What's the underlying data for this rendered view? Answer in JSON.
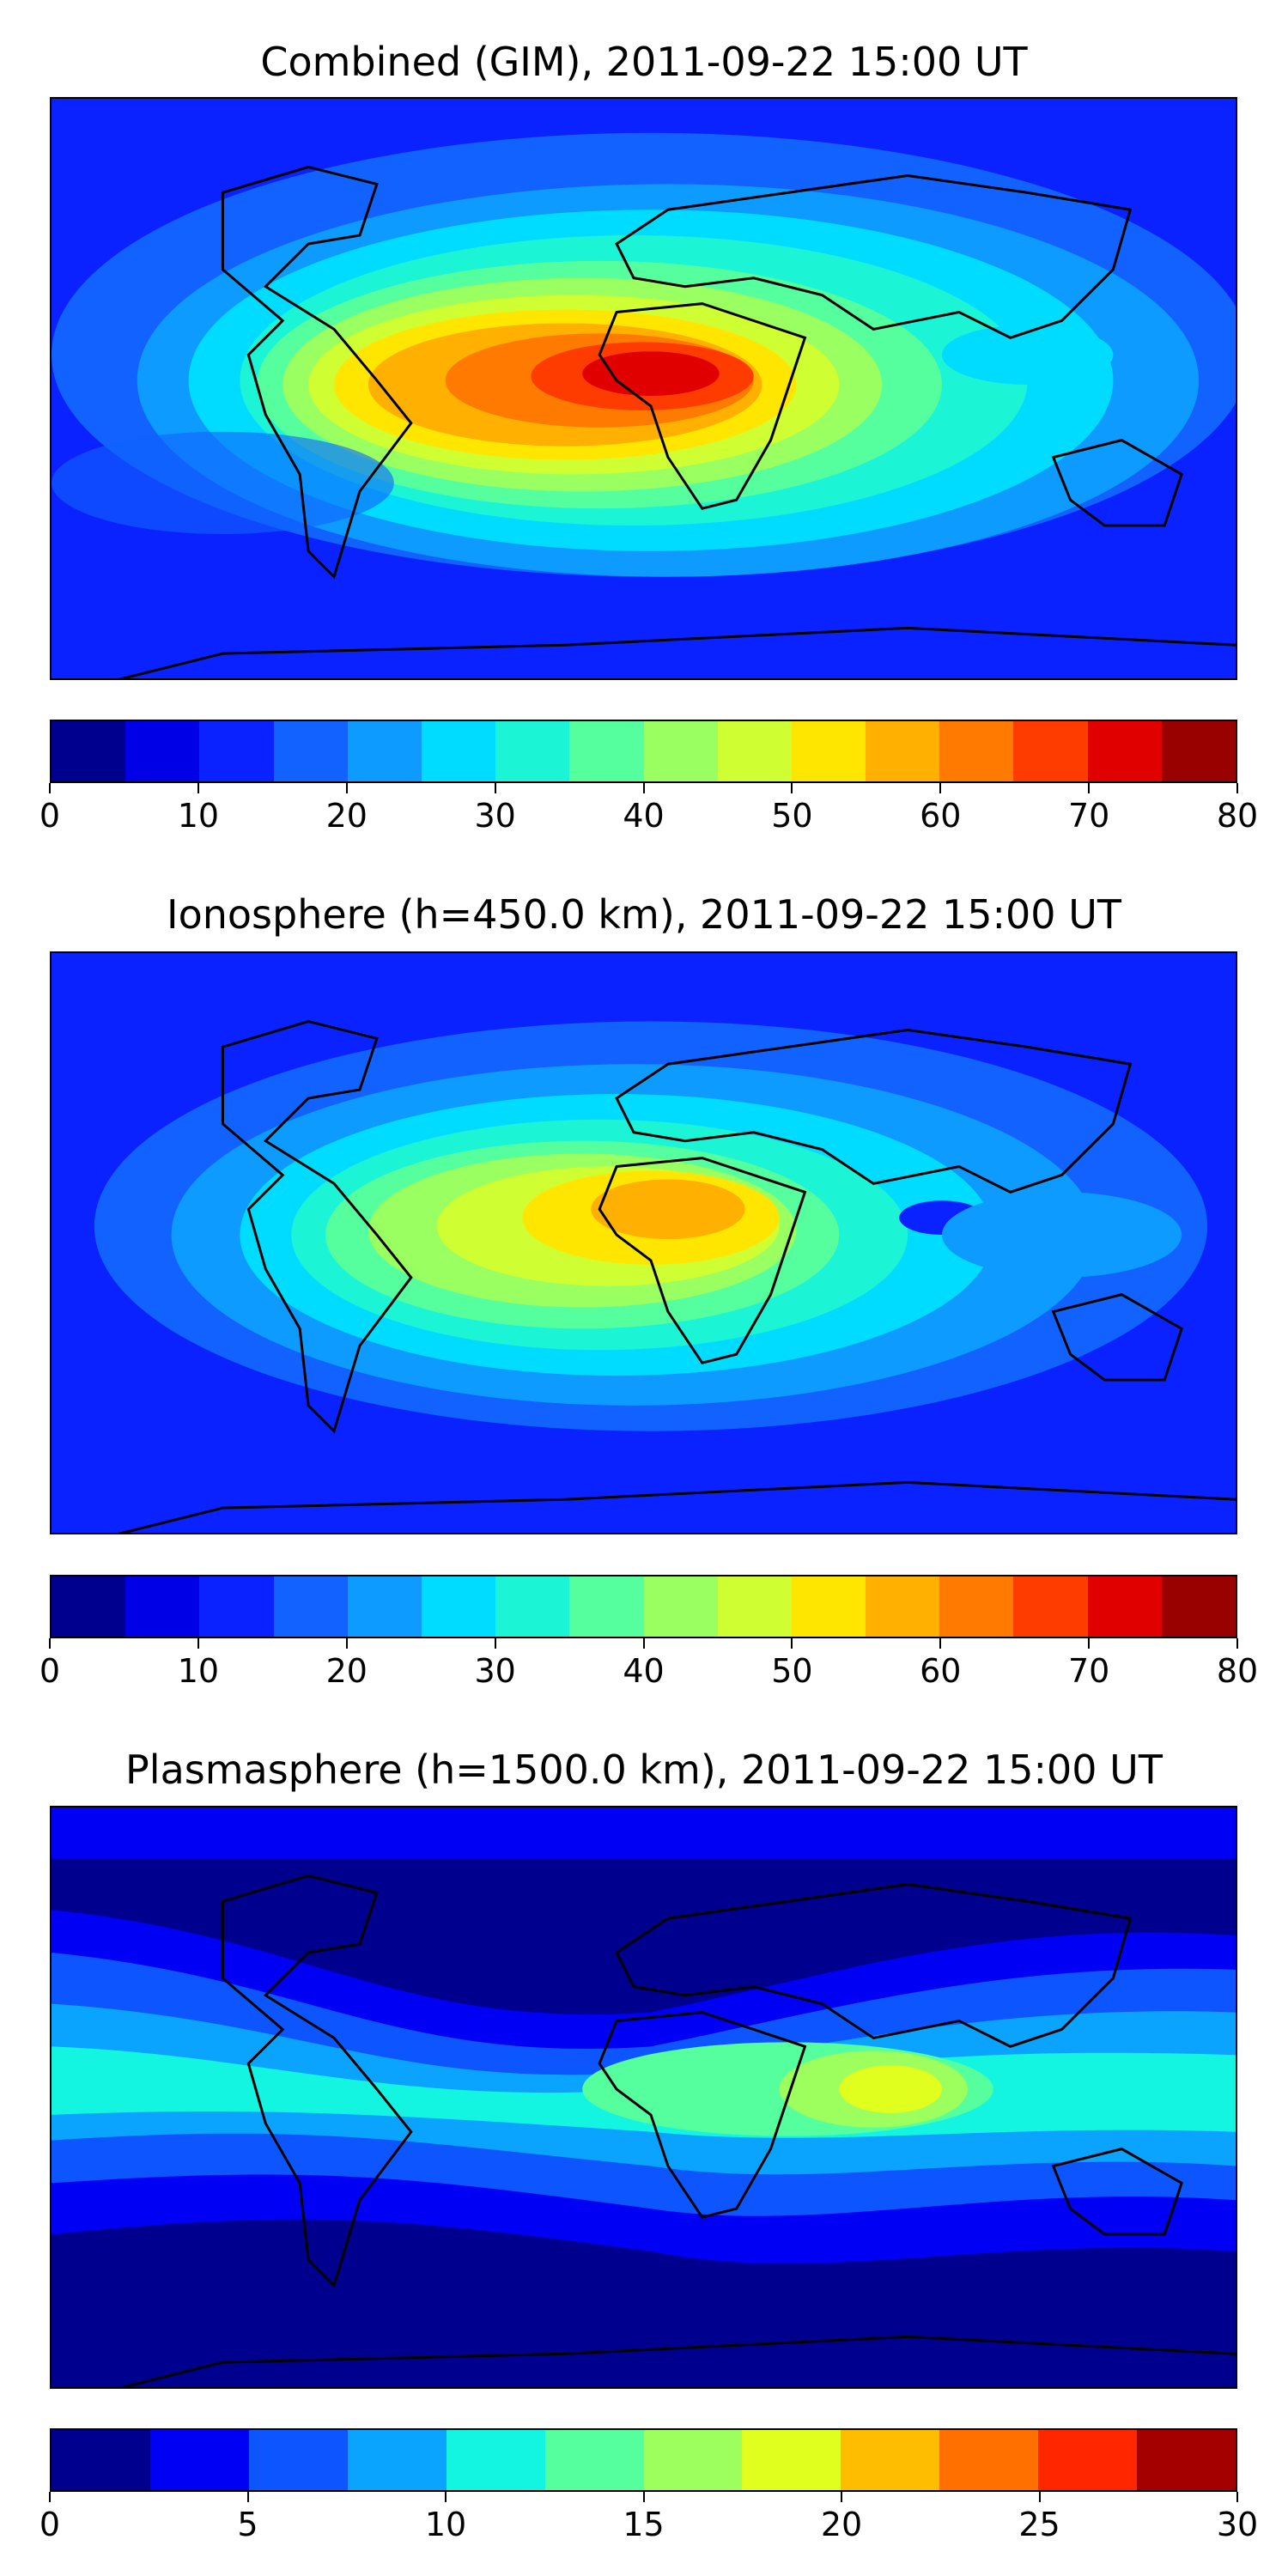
{
  "panels": [
    {
      "title": "Combined (GIM), 2011-09-22 15:00 UT",
      "colorbar": {
        "min": 0,
        "max": 80,
        "colors": [
          "#00008f",
          "#0000e6",
          "#0a22ff",
          "#1162ff",
          "#0d9bff",
          "#00dcff",
          "#1cf4d6",
          "#55ff9e",
          "#9aff60",
          "#cfff33",
          "#ffe600",
          "#ffb000",
          "#ff7a00",
          "#ff3c00",
          "#e00000",
          "#990000"
        ],
        "ticks": [
          "0",
          "10",
          "20",
          "30",
          "40",
          "50",
          "60",
          "70",
          "80"
        ]
      },
      "background": "#0a22ff"
    },
    {
      "title": "Ionosphere  (h=450.0 km), 2011-09-22 15:00 UT",
      "colorbar": {
        "min": 0,
        "max": 80,
        "colors": [
          "#00008f",
          "#0000e6",
          "#0a22ff",
          "#1162ff",
          "#0d9bff",
          "#00dcff",
          "#1cf4d6",
          "#55ff9e",
          "#9aff60",
          "#cfff33",
          "#ffe600",
          "#ffb000",
          "#ff7a00",
          "#ff3c00",
          "#e00000",
          "#990000"
        ],
        "ticks": [
          "0",
          "10",
          "20",
          "30",
          "40",
          "50",
          "60",
          "70",
          "80"
        ]
      },
      "background": "#0a22ff"
    },
    {
      "title": "Plasmasphere (h=1500.0 km), 2011-09-22 15:00 UT",
      "colorbar": {
        "min": 0,
        "max": 30,
        "colors": [
          "#00008f",
          "#0000f5",
          "#0d55ff",
          "#0aa4ff",
          "#13f5e0",
          "#55ff9e",
          "#9cff5e",
          "#e0ff1f",
          "#ffbd00",
          "#ff7000",
          "#ff2600",
          "#a50000"
        ],
        "ticks": [
          "0",
          "5",
          "10",
          "15",
          "20",
          "25",
          "30"
        ]
      },
      "background": "#0000f5"
    }
  ]
}
